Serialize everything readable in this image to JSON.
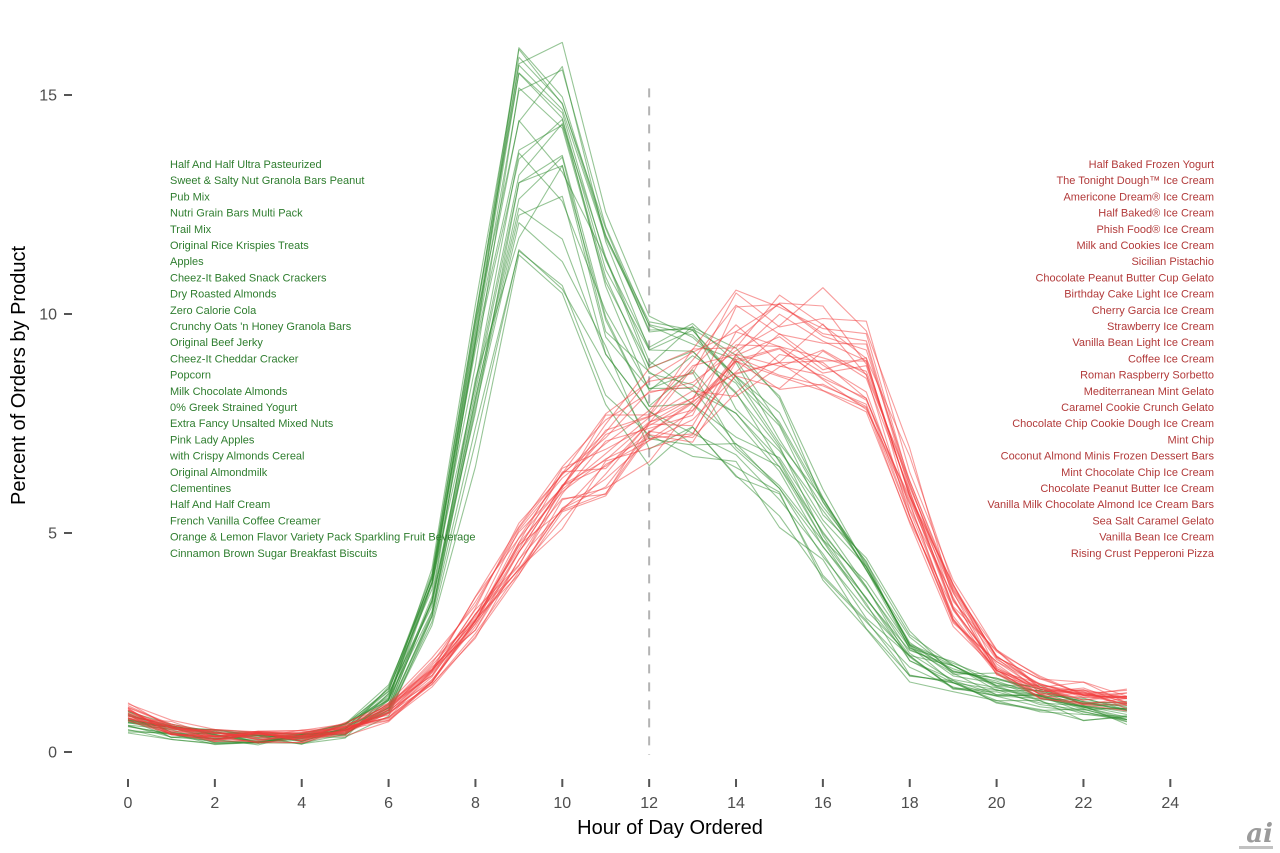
{
  "watermark": {
    "text": "ai"
  },
  "chart_data": {
    "type": "line",
    "title": "",
    "xlabel": "Hour of Day Ordered",
    "ylabel": "Percent of Orders by Product",
    "xlim": [
      0,
      24
    ],
    "ylim": [
      0,
      16.5
    ],
    "x_ticks": [
      0,
      2,
      4,
      6,
      8,
      10,
      12,
      14,
      16,
      18,
      20,
      22,
      24
    ],
    "y_ticks": [
      0,
      5,
      10,
      15
    ],
    "hours": [
      0,
      1,
      2,
      3,
      4,
      5,
      6,
      7,
      8,
      9,
      10,
      11,
      12,
      13,
      14,
      15,
      16,
      17,
      18,
      19,
      20,
      21,
      22,
      23
    ],
    "vline_hour": 12,
    "vline_color": "#b3b3b3",
    "grid": false,
    "legend_position": "none",
    "tick_label_color": "#4d4d4d",
    "tick_mark_color": "#555555",
    "groups": [
      {
        "id": "morning",
        "line_color": "#2e8b2e",
        "line_opacity": 0.5,
        "label_color": "#2e7d2e",
        "peak_hours": [
          9,
          10
        ],
        "peak_percent_range": [
          11.3,
          16.2
        ],
        "mean_percent_by_hour": [
          0.7,
          0.45,
          0.35,
          0.3,
          0.3,
          0.45,
          1.2,
          3.5,
          8.5,
          12.9,
          13.8,
          10.3,
          8.3,
          8.4,
          7.6,
          6.6,
          5.0,
          3.6,
          2.2,
          1.7,
          1.4,
          1.2,
          1.0,
          0.85
        ],
        "products": [
          "Half And Half Ultra Pasteurized",
          "Sweet & Salty Nut Granola Bars Peanut",
          "Pub Mix",
          "Nutri Grain Bars Multi Pack",
          "Trail Mix",
          "Original Rice Krispies Treats",
          "Apples",
          "Cheez-It Baked Snack Crackers",
          "Dry Roasted Almonds",
          "Zero Calorie Cola",
          "Crunchy Oats 'n Honey Granola Bars",
          "Original Beef Jerky",
          "Cheez-It Cheddar Cracker",
          "Popcorn",
          "Milk Chocolate Almonds",
          "0% Greek Strained Yogurt",
          "Extra Fancy Unsalted Mixed Nuts",
          "Pink Lady Apples",
          "with Crispy Almonds Cereal",
          "Original Almondmilk",
          "Clementines",
          "Half And Half Cream",
          "French Vanilla Coffee Creamer",
          "Orange & Lemon Flavor Variety Pack Sparkling Fruit Beverage",
          "Cinnamon Brown Sugar Breakfast Biscuits"
        ]
      },
      {
        "id": "evening",
        "line_color": "#f23c3c",
        "line_opacity": 0.5,
        "label_color": "#b23a3a",
        "peak_hours": [
          14,
          15,
          16
        ],
        "peak_percent_range": [
          8.7,
          10.6
        ],
        "mean_percent_by_hour": [
          0.9,
          0.55,
          0.4,
          0.35,
          0.35,
          0.5,
          0.9,
          1.8,
          3.0,
          4.6,
          5.9,
          6.7,
          7.5,
          8.1,
          8.7,
          9.3,
          9.6,
          8.7,
          5.9,
          3.4,
          2.0,
          1.5,
          1.3,
          1.2
        ],
        "products": [
          "Half Baked Frozen Yogurt",
          "The Tonight Dough™ Ice Cream",
          "Americone Dream® Ice Cream",
          "Half Baked® Ice Cream",
          "Phish Food® Ice Cream",
          "Milk and Cookies Ice Cream",
          "Sicilian Pistachio",
          "Chocolate Peanut Butter Cup Gelato",
          "Birthday Cake Light Ice Cream",
          "Cherry Garcia Ice Cream",
          "Strawberry Ice Cream",
          "Vanilla Bean Light Ice Cream",
          "Coffee Ice Cream",
          "Roman Raspberry Sorbetto",
          "Mediterranean Mint Gelato",
          "Caramel Cookie Crunch Gelato",
          "Chocolate Chip Cookie Dough Ice Cream",
          "Mint Chip",
          "Coconut Almond Minis Frozen Dessert Bars",
          "Mint Chocolate Chip Ice Cream",
          "Chocolate Peanut Butter Ice Cream",
          "Vanilla Milk Chocolate Almond Ice Cream Bars",
          "Sea Salt Caramel Gelato",
          "Vanilla Bean Ice Cream",
          "Rising Crust Pepperoni Pizza"
        ]
      }
    ]
  }
}
